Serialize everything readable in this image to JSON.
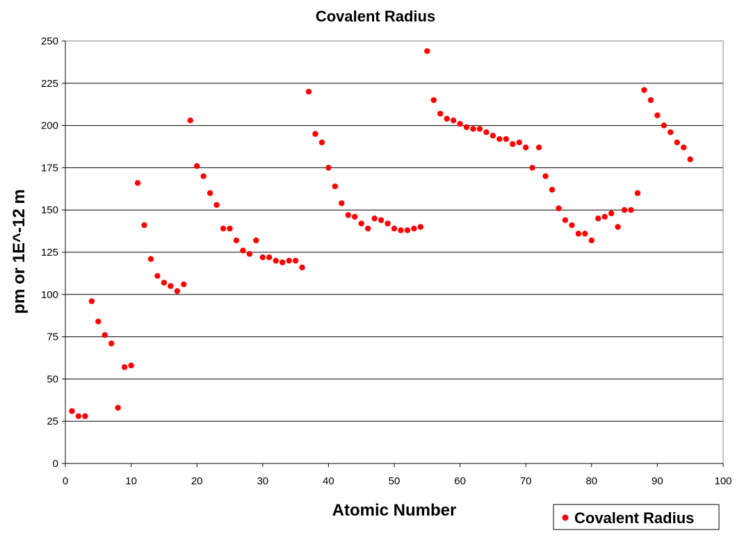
{
  "chart_data": {
    "type": "scatter",
    "title": "Covalent Radius",
    "xlabel": "Atomic Number",
    "ylabel": "pm or 1E^-12 m",
    "xlim": [
      0,
      100
    ],
    "ylim": [
      0,
      250
    ],
    "x_ticks": [
      0,
      10,
      20,
      30,
      40,
      50,
      60,
      70,
      80,
      90,
      100
    ],
    "y_ticks": [
      0,
      25,
      50,
      75,
      100,
      125,
      150,
      175,
      200,
      225,
      250
    ],
    "grid": "horizontal",
    "legend": "bottom-right",
    "colors": {
      "marker": "#ff0000"
    },
    "series": [
      {
        "name": "Covalent Radius",
        "x": [
          1,
          2,
          3,
          4,
          5,
          6,
          7,
          8,
          9,
          10,
          11,
          12,
          13,
          14,
          15,
          16,
          17,
          18,
          19,
          20,
          21,
          22,
          23,
          24,
          25,
          26,
          27,
          28,
          29,
          30,
          31,
          32,
          33,
          34,
          35,
          36,
          37,
          38,
          39,
          40,
          41,
          42,
          43,
          44,
          45,
          46,
          47,
          48,
          49,
          50,
          51,
          52,
          53,
          54,
          55,
          56,
          57,
          58,
          59,
          60,
          61,
          62,
          63,
          64,
          65,
          66,
          67,
          68,
          69,
          70,
          71,
          72,
          73,
          74,
          75,
          76,
          77,
          78,
          79,
          80,
          81,
          82,
          83,
          84,
          85,
          86,
          87,
          88,
          89,
          90,
          91,
          92,
          93,
          94,
          95
        ],
        "y": [
          31,
          28,
          28,
          96,
          84,
          76,
          71,
          33,
          57,
          58,
          166,
          141,
          121,
          111,
          107,
          105,
          102,
          106,
          203,
          176,
          170,
          160,
          153,
          139,
          139,
          132,
          126,
          124,
          132,
          122,
          122,
          120,
          119,
          120,
          120,
          116,
          220,
          195,
          190,
          175,
          164,
          154,
          147,
          146,
          142,
          139,
          145,
          144,
          142,
          139,
          138,
          138,
          139,
          140,
          244,
          215,
          207,
          204,
          203,
          201,
          199,
          198,
          198,
          196,
          194,
          192,
          192,
          189,
          190,
          187,
          175,
          187,
          170,
          162,
          151,
          144,
          141,
          136,
          136,
          132,
          145,
          146,
          148,
          140,
          150,
          150,
          160,
          221,
          215,
          206,
          200,
          196,
          190,
          187,
          180
        ]
      }
    ]
  }
}
